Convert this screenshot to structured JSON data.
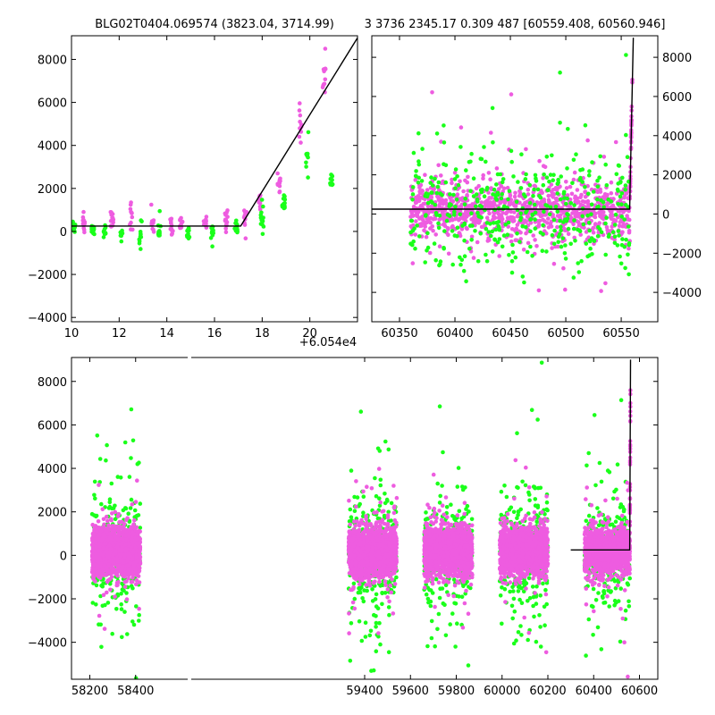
{
  "header": {
    "left_title": "BLG02T0404.069574 (3823.04, 3714.99)",
    "right_title": "3 3736 2345.17 0.309 487 [60559.408, 60560.946]"
  },
  "colors": {
    "magenta": "#ee5ce0",
    "green": "#1aff1a",
    "line": "#000000"
  },
  "chart_data": [
    {
      "type": "scatter",
      "panel": "top-left",
      "x_offset_label": "+6.054e4",
      "xlim": [
        10,
        22
      ],
      "ylim": [
        -4200,
        9100
      ],
      "xticks": [
        10,
        12,
        14,
        16,
        18,
        20
      ],
      "yticks": [
        -4000,
        -2000,
        0,
        2000,
        4000,
        6000,
        8000
      ],
      "tick_side": "left",
      "grid": false,
      "model_line": {
        "x": [
          10,
          17.1,
          22
        ],
        "y": [
          250,
          250,
          9000
        ]
      },
      "clusters": [
        {
          "x": 10.1,
          "series": "green",
          "mean": 150,
          "sd": 350
        },
        {
          "x": 10.5,
          "series": "magenta",
          "mean": 500,
          "sd": 500
        },
        {
          "x": 10.9,
          "series": "green",
          "mean": 0,
          "sd": 300
        },
        {
          "x": 11.4,
          "series": "green",
          "mean": 0,
          "sd": 250
        },
        {
          "x": 11.7,
          "series": "magenta",
          "mean": 400,
          "sd": 600
        },
        {
          "x": 12.1,
          "series": "green",
          "mean": -100,
          "sd": 250
        },
        {
          "x": 12.5,
          "series": "magenta",
          "mean": 700,
          "sd": 550
        },
        {
          "x": 12.9,
          "series": "green",
          "mean": -100,
          "sd": 700
        },
        {
          "x": 13.4,
          "series": "magenta",
          "mean": 250,
          "sd": 450
        },
        {
          "x": 13.7,
          "series": "green",
          "mean": 0,
          "sd": 300
        },
        {
          "x": 14.2,
          "series": "magenta",
          "mean": 250,
          "sd": 450
        },
        {
          "x": 14.6,
          "series": "magenta",
          "mean": 400,
          "sd": 350
        },
        {
          "x": 14.9,
          "series": "green",
          "mean": -100,
          "sd": 250
        },
        {
          "x": 15.6,
          "series": "magenta",
          "mean": 400,
          "sd": 300
        },
        {
          "x": 15.9,
          "series": "green",
          "mean": 0,
          "sd": 300
        },
        {
          "x": 16.5,
          "series": "magenta",
          "mean": 550,
          "sd": 400
        },
        {
          "x": 16.9,
          "series": "green",
          "mean": 100,
          "sd": 300
        },
        {
          "x": 17.3,
          "series": "magenta",
          "mean": 700,
          "sd": 400
        },
        {
          "x": 17.9,
          "series": "magenta",
          "mean": 1300,
          "sd": 400
        },
        {
          "x": 18.0,
          "series": "green",
          "mean": 550,
          "sd": 300
        },
        {
          "x": 18.7,
          "series": "magenta",
          "mean": 2300,
          "sd": 400
        },
        {
          "x": 18.9,
          "series": "green",
          "mean": 1300,
          "sd": 300
        },
        {
          "x": 19.6,
          "series": "magenta",
          "mean": 5000,
          "sd": 800
        },
        {
          "x": 19.9,
          "series": "green",
          "mean": 3500,
          "sd": 400
        },
        {
          "x": 20.6,
          "series": "magenta",
          "mean": 7000,
          "sd": 600
        },
        {
          "x": 20.9,
          "series": "green",
          "mean": 2400,
          "sd": 250
        }
      ]
    },
    {
      "type": "scatter",
      "panel": "top-right",
      "xlim": [
        60325,
        60583
      ],
      "ylim": [
        -5500,
        9100
      ],
      "xticks": [
        60350,
        60400,
        60450,
        60500,
        60550
      ],
      "yticks": [
        -4000,
        -2000,
        0,
        2000,
        4000,
        6000,
        8000
      ],
      "tick_side": "right",
      "grid": false,
      "model_line": {
        "x": [
          60325,
          60557.6,
          60560.9
        ],
        "y": [
          250,
          250,
          9000
        ]
      },
      "bands": [
        {
          "x0": 60360,
          "x1": 60558,
          "series": "magenta",
          "mean": 250,
          "sd": 700,
          "count": 1100
        },
        {
          "x0": 60360,
          "x1": 60558,
          "series": "green",
          "mean": 150,
          "sd": 1500,
          "count": 420
        }
      ]
    },
    {
      "type": "scatter",
      "panel": "bottom",
      "xlim": [
        58120,
        60680
      ],
      "ylim": [
        -5700,
        9100
      ],
      "xticks": [
        58200,
        58400,
        59400,
        59600,
        59800,
        60000,
        60200,
        60400,
        60600
      ],
      "yticks": [
        -4000,
        -2000,
        0,
        2000,
        4000,
        6000,
        8000
      ],
      "tick_side": "left",
      "grid": false,
      "model_line": {
        "x": [
          60300,
          60557.6,
          60560.9
        ],
        "y": [
          250,
          250,
          9000
        ]
      },
      "seasons": [
        {
          "x0": 58210,
          "x1": 58420,
          "magenta_count": 1500,
          "green_count": 330
        },
        {
          "x0": 59330,
          "x1": 59540,
          "magenta_count": 1500,
          "green_count": 380
        },
        {
          "x0": 59660,
          "x1": 59870,
          "magenta_count": 1300,
          "green_count": 330
        },
        {
          "x0": 59990,
          "x1": 60200,
          "magenta_count": 1300,
          "green_count": 330
        },
        {
          "x0": 60360,
          "x1": 60558,
          "magenta_count": 1100,
          "green_count": 300
        }
      ]
    }
  ]
}
